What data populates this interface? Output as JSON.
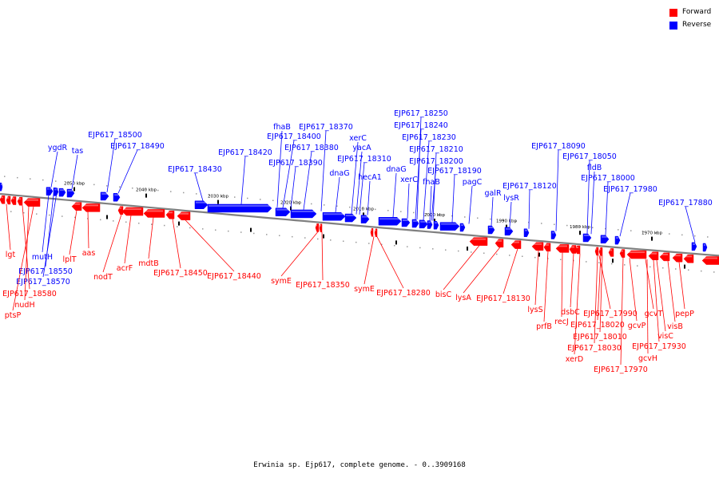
{
  "legend": [
    {
      "label": "Forward",
      "color": "#ff0000"
    },
    {
      "label": "Reverse",
      "color": "#0000ff"
    }
  ],
  "caption": "Erwinia sp. Ejp617, complete genome. - 0..3909168",
  "colors": {
    "forward": "#ff0000",
    "reverse": "#0000ff",
    "axis": "#808080"
  },
  "scale_ticks": [
    "2050 kbp",
    "2040 kbp",
    "2030 kbp",
    "2020 kbp",
    "2010 kbp",
    "2000 kbp",
    "1990 kbp",
    "1980 kbp",
    "1970 kbp"
  ],
  "reverse_labels": [
    "ygdR",
    "tas",
    "EJP617_18500",
    "EJP617_18490",
    "EJP617_18430",
    "EJP617_18420",
    "fhaB",
    "EJP617_18370",
    "EJP617_18400",
    "EJP617_18380",
    "EJP617_18390",
    "dnaG",
    "xerC",
    "yacA",
    "EJP617_18310",
    "hecA1",
    "EJP617_18250",
    "EJP617_18240",
    "EJP617_18230",
    "EJP617_18210",
    "EJP617_18200",
    "dnaG",
    "xerC",
    "EJP617_18190",
    "fhaB",
    "pagC",
    "galR",
    "lysR",
    "EJP617_18120",
    "EJP617_18090",
    "EJP617_18050",
    "fldB",
    "EJP617_18000",
    "EJP617_17980",
    "EJP617_17880",
    "mutH",
    "EJP617_18550",
    "EJP617_18570"
  ],
  "forward_labels": [
    "lgt",
    "EJP617_18580",
    "nudH",
    "ptsP",
    "lplT",
    "aas",
    "nodT",
    "acrF",
    "mdtB",
    "EJP617_18450",
    "EJP617_18440",
    "symE",
    "EJP617_18350",
    "symE",
    "EJP617_18280",
    "bisC",
    "lysA",
    "EJP617_18130",
    "lysS",
    "prfB",
    "recJ",
    "dsbC",
    "EJP617_17990",
    "EJP617_18020",
    "gcvP",
    "gcvT",
    "EJP617_18010",
    "visC",
    "visB",
    "pepP",
    "EJP617_18030",
    "EJP617_17930",
    "xerD",
    "gcvH",
    "EJP617_17970"
  ]
}
